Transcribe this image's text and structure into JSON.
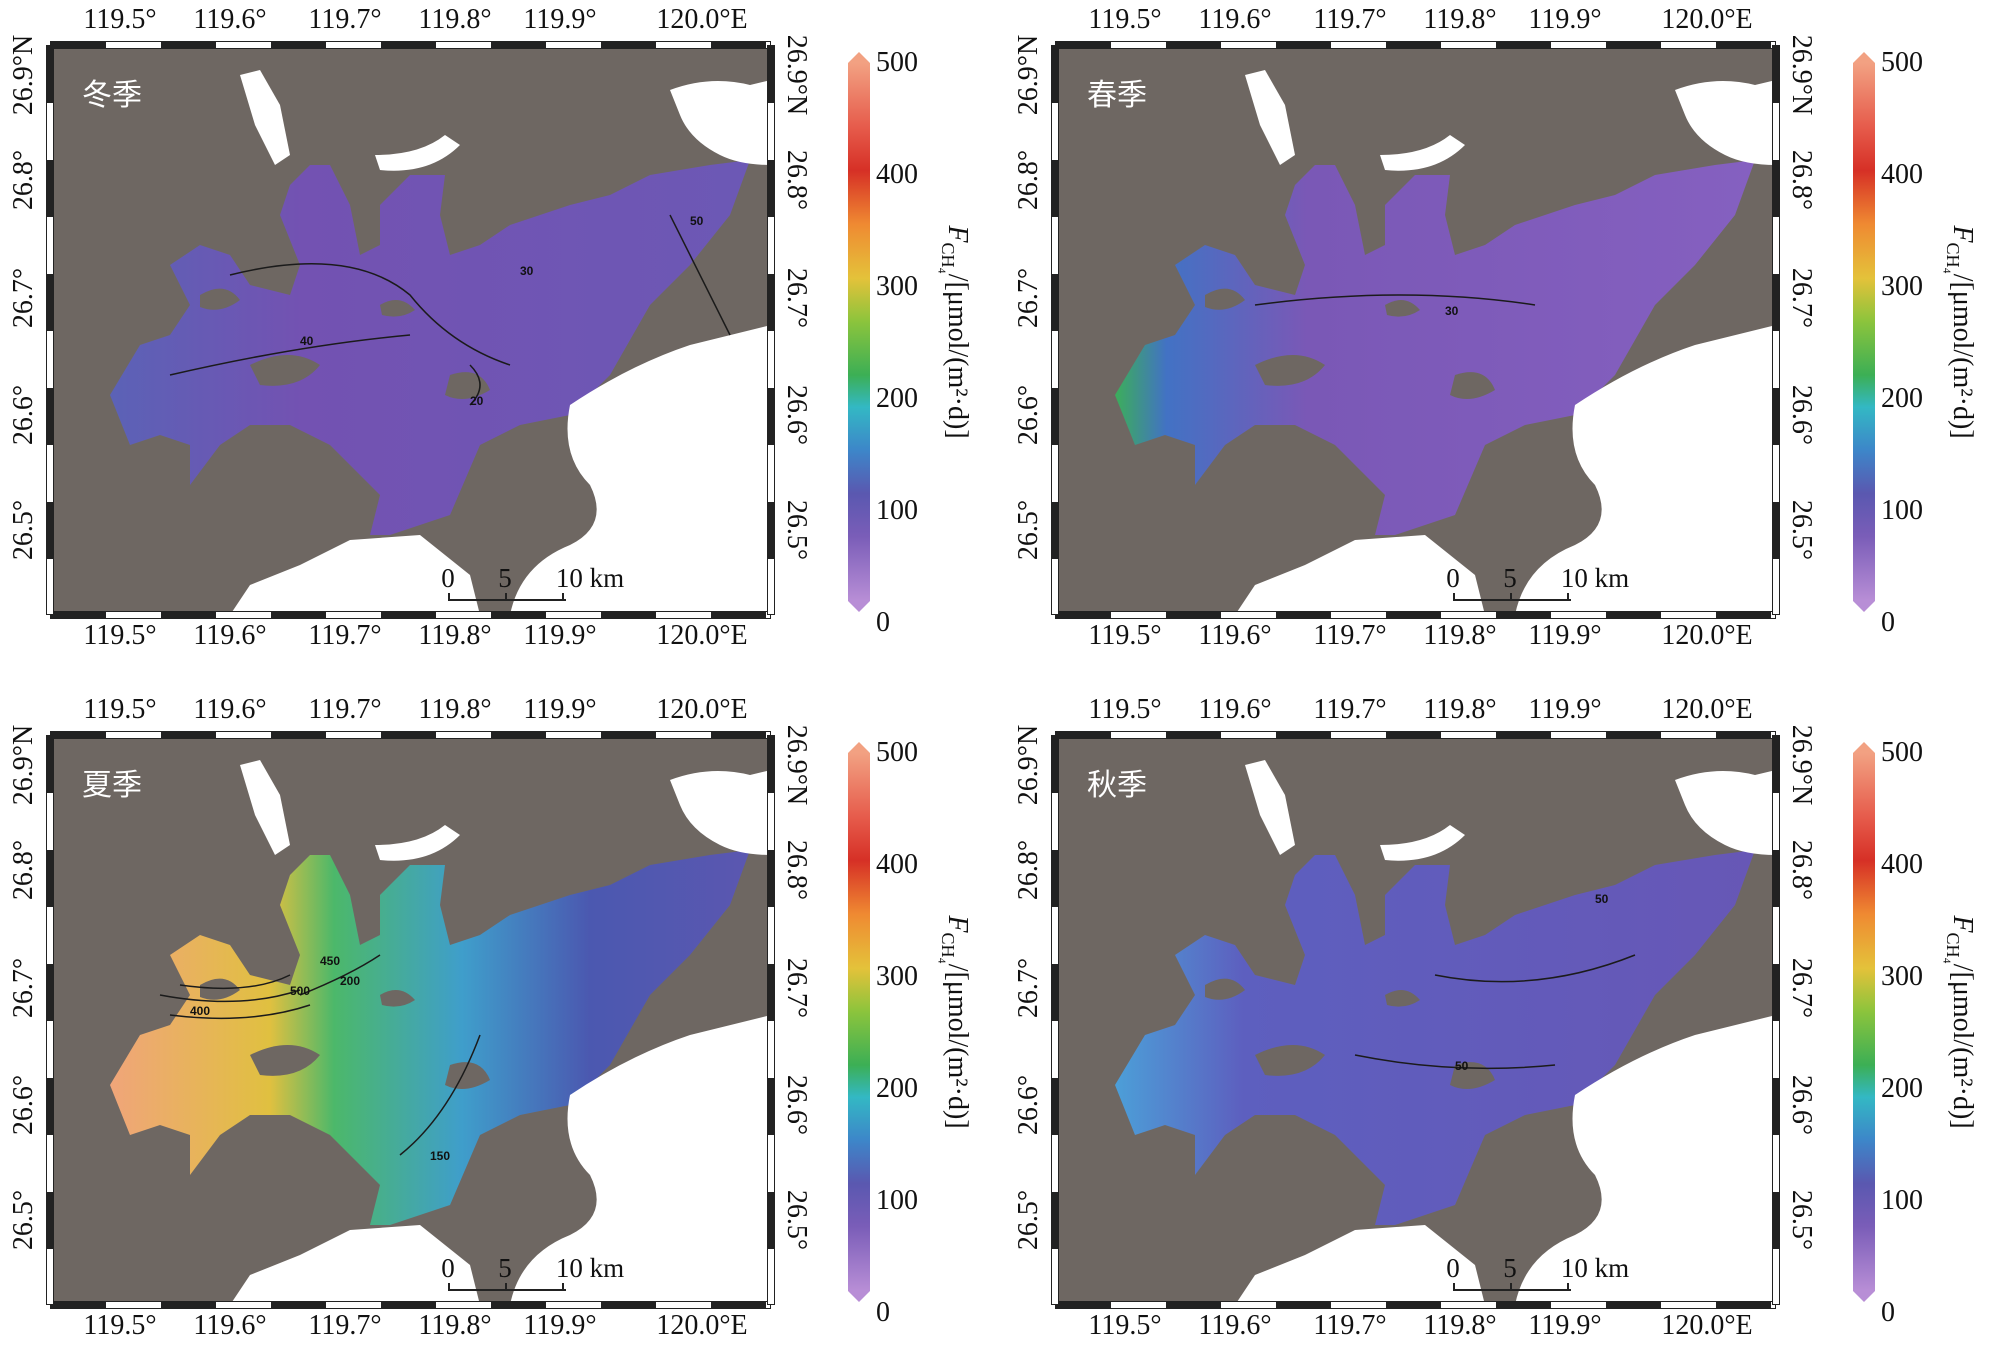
{
  "lon_ticks": [
    "119.5°",
    "119.6°",
    "119.7°",
    "119.8°",
    "119.9°",
    "120.0°E"
  ],
  "lat_ticks_left": [
    "26.9°N",
    "26.8°",
    "26.7°",
    "26.6°",
    "26.5°"
  ],
  "lat_ticks_right": [
    "26.9°N",
    "26.8°",
    "26.7°",
    "26.6°",
    "26.5°"
  ],
  "scale_bar": {
    "labels": [
      "0",
      "5",
      "10 km"
    ]
  },
  "colorbar": {
    "ticks": [
      "500",
      "400",
      "300",
      "200",
      "100",
      "0"
    ],
    "unit_symbol": "F",
    "unit_sub": "CH₄",
    "unit_rest": "/[μmol/(m²·d)]",
    "colors": [
      "#b88ed6",
      "#5a58b0",
      "#33b8c4",
      "#3caf55",
      "#e4c23a",
      "#d63026",
      "#f2a182"
    ]
  },
  "land_color": "#6e6762",
  "panels": [
    {
      "season": "冬季",
      "water_fill": "#7a5bb0",
      "contour_labels": [
        "30",
        "40",
        "20",
        "50"
      ]
    },
    {
      "season": "春季",
      "water_fill": "#7b5bb5",
      "contour_labels": [
        "30"
      ]
    },
    {
      "season": "夏季",
      "water_fill": "#4a9fb8",
      "contour_labels": [
        "450",
        "500",
        "400",
        "200",
        "150"
      ]
    },
    {
      "season": "秋季",
      "water_fill": "#6a55b5",
      "contour_labels": [
        "50",
        "50"
      ]
    }
  ]
}
